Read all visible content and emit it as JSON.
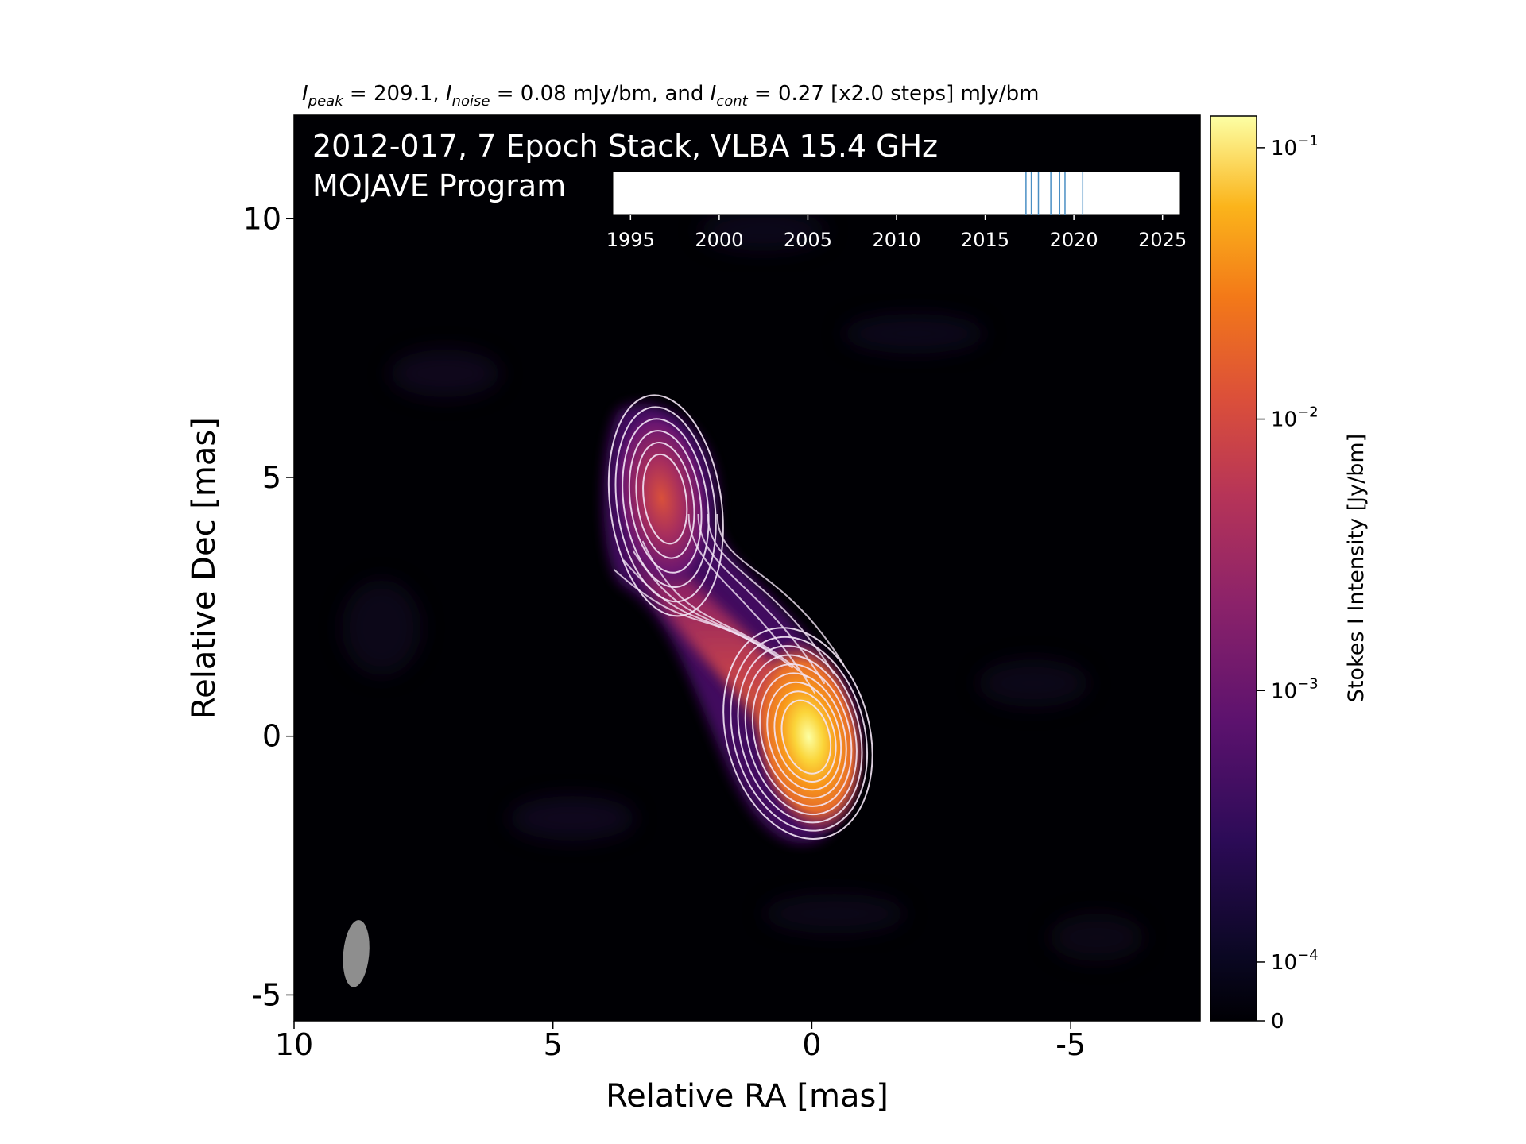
{
  "chart_data": {
    "type": "heatmap",
    "title_parts": {
      "i1": "I",
      "s1": "peak",
      "t1": " = 209.1, ",
      "i2": "I",
      "s2": "noise",
      "t2": " = 0.08 mJy/bm, and ",
      "i3": "I",
      "s3": "cont",
      "t3": " = 0.27 [x2.0 steps] mJy/bm"
    },
    "overlay_line1": "2012-017, 7 Epoch Stack, VLBA 15.4 GHz",
    "overlay_line2": "MOJAVE Program",
    "xlabel": "Relative RA [mas]",
    "ylabel": "Relative Dec [mas]",
    "xlim": [
      10,
      -7.5
    ],
    "ylim": [
      -5.5,
      12
    ],
    "x_ticks": [
      {
        "value": 10,
        "label": "10"
      },
      {
        "value": 5,
        "label": "5"
      },
      {
        "value": 0,
        "label": "0"
      },
      {
        "value": -5,
        "label": "-5"
      }
    ],
    "y_ticks": [
      {
        "value": 10,
        "label": "10"
      },
      {
        "value": 5,
        "label": "5"
      },
      {
        "value": 0,
        "label": "0"
      },
      {
        "value": -5,
        "label": "-5"
      }
    ],
    "colorbar": {
      "label": "Stokes I Intensity [Jy/bm]",
      "colormap": "inferno",
      "scale": "symlog",
      "ticks": [
        {
          "value": 0,
          "label": "0"
        },
        {
          "value": 0.0001,
          "label": "10",
          "exp": "−4"
        },
        {
          "value": 0.001,
          "label": "10",
          "exp": "−3"
        },
        {
          "value": 0.01,
          "label": "10",
          "exp": "−2"
        },
        {
          "value": 0.1,
          "label": "10",
          "exp": "−1"
        }
      ]
    },
    "epoch_timeline": {
      "xlim": [
        1994,
        2026
      ],
      "ticks": [
        {
          "value": 1995,
          "label": "1995"
        },
        {
          "value": 2000,
          "label": "2000"
        },
        {
          "value": 2005,
          "label": "2005"
        },
        {
          "value": 2010,
          "label": "2010"
        },
        {
          "value": 2015,
          "label": "2015"
        },
        {
          "value": 2020,
          "label": "2020"
        },
        {
          "value": 2025,
          "label": "2025"
        }
      ],
      "epochs": [
        2017.3,
        2017.6,
        2018.0,
        2018.7,
        2019.2,
        2019.5,
        2020.5
      ],
      "epoch_color": "#4a8fc4"
    },
    "components": [
      {
        "name": "core",
        "ra": 0.0,
        "dec": 0.0,
        "peak_jy": 0.209
      },
      {
        "name": "knot",
        "ra": 2.9,
        "dec": 4.6,
        "peak_jy": 0.004
      }
    ],
    "beam": {
      "ra": 8.8,
      "dec": -4.2,
      "major_mas": 1.3,
      "minor_mas": 0.5,
      "pa_deg": 5
    },
    "background_color": "#000004"
  }
}
